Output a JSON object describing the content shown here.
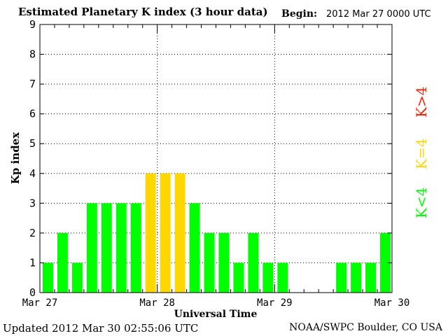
{
  "header": {
    "title": "Estimated Planetary K index (3 hour data)",
    "begin_label": "Begin:",
    "begin_value": "2012 Mar 27 0000 UTC"
  },
  "footer": {
    "updated": "Updated 2012 Mar 30 02:55:06 UTC",
    "source": "NOAA/SWPC Boulder, CO USA"
  },
  "legend": {
    "high": "K>4",
    "equal": "K=4",
    "low": "K<4"
  },
  "colors": {
    "low": "#00ff00",
    "equal": "#ffd700",
    "high": "#ff2000",
    "axis": "#000000"
  },
  "chart_data": {
    "type": "bar",
    "title": "Estimated Planetary K index (3 hour data)",
    "xlabel": "Universal Time",
    "ylabel": "Kp index",
    "ylim": [
      0,
      9
    ],
    "yticks": [
      "0",
      "1",
      "2",
      "3",
      "4",
      "5",
      "6",
      "7",
      "8",
      "9"
    ],
    "xticks": [
      "Mar 27",
      "Mar 28",
      "Mar 29",
      "Mar 30"
    ],
    "grid": true,
    "interval_hours": 3,
    "values": [
      1,
      2,
      1,
      3,
      3,
      3,
      3,
      4,
      4,
      4,
      3,
      2,
      2,
      1,
      2,
      1,
      1,
      null,
      null,
      null,
      1,
      1,
      1,
      2
    ]
  }
}
